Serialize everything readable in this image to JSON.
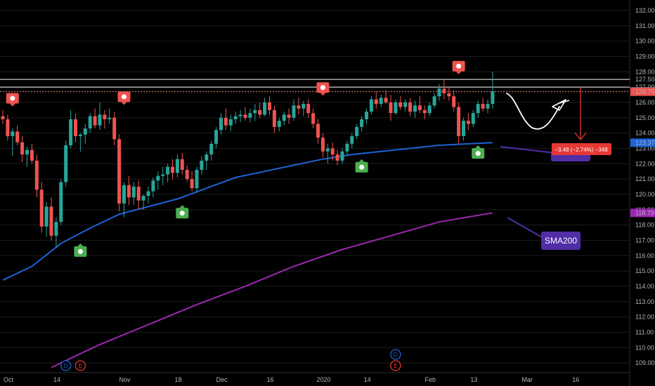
{
  "chart_data": {
    "type": "candlestick",
    "y_axis": {
      "min": 108.5,
      "max": 132.5,
      "ticks": [
        "132.00",
        "131.00",
        "130.00",
        "129.00",
        "128.00",
        "127.00",
        "126.00",
        "125.00",
        "124.00",
        "123.00",
        "122.00",
        "121.00",
        "120.00",
        "119.00",
        "118.00",
        "117.00",
        "116.00",
        "115.00",
        "114.00",
        "113.00",
        "112.00",
        "111.00",
        "110.00",
        "109.00"
      ],
      "position": "right"
    },
    "x_axis": {
      "ticks": [
        {
          "label": "Oct",
          "bar": 0
        },
        {
          "label": "14",
          "bar": 10
        },
        {
          "label": "Nov",
          "bar": 24
        },
        {
          "label": "18",
          "bar": 35
        },
        {
          "label": "Dec",
          "bar": 44
        },
        {
          "label": "16",
          "bar": 54
        },
        {
          "label": "2020",
          "bar": 65
        },
        {
          "label": "14",
          "bar": 74
        },
        {
          "label": "Feb",
          "bar": 87
        },
        {
          "label": "13",
          "bar": 96
        },
        {
          "label": "Mar",
          "bar": 107
        },
        {
          "label": "16",
          "bar": 117
        }
      ]
    },
    "candles": [
      [
        125.1,
        125.5,
        124.6,
        124.9
      ],
      [
        124.9,
        125.2,
        123.5,
        123.8
      ],
      [
        123.8,
        124.3,
        122.5,
        124.1
      ],
      [
        124.1,
        124.5,
        123.2,
        123.4
      ],
      [
        123.4,
        123.8,
        122.1,
        122.6
      ],
      [
        122.6,
        123.1,
        121.8,
        122.9
      ],
      [
        122.9,
        123.3,
        122.0,
        122.2
      ],
      [
        122.2,
        122.6,
        119.8,
        120.3
      ],
      [
        120.3,
        120.8,
        117.5,
        117.9
      ],
      [
        117.9,
        119.5,
        117.2,
        119.2
      ],
      [
        119.2,
        119.8,
        117.0,
        117.3
      ],
      [
        117.3,
        118.5,
        116.5,
        118.2
      ],
      [
        118.2,
        121.0,
        118.0,
        120.8
      ],
      [
        120.8,
        123.5,
        120.5,
        123.2
      ],
      [
        123.2,
        125.5,
        123.0,
        124.9
      ],
      [
        124.9,
        125.3,
        123.4,
        123.8
      ],
      [
        123.8,
        124.0,
        122.8,
        123.9
      ],
      [
        123.9,
        124.6,
        123.3,
        124.3
      ],
      [
        124.3,
        125.3,
        124.0,
        125.1
      ],
      [
        125.1,
        125.6,
        124.3,
        124.5
      ],
      [
        124.5,
        126.0,
        124.2,
        125.2
      ],
      [
        125.2,
        125.5,
        124.3,
        124.9
      ],
      [
        124.9,
        125.6,
        124.6,
        125.0
      ],
      [
        125.0,
        125.4,
        123.2,
        123.6
      ],
      [
        123.6,
        123.9,
        118.9,
        119.4
      ],
      [
        119.4,
        120.8,
        118.5,
        120.6
      ],
      [
        120.6,
        121.2,
        119.3,
        119.8
      ],
      [
        119.8,
        120.8,
        119.3,
        120.5
      ],
      [
        120.5,
        120.9,
        119.0,
        119.6
      ],
      [
        119.6,
        120.0,
        119.0,
        119.9
      ],
      [
        119.9,
        120.5,
        119.4,
        120.2
      ],
      [
        120.2,
        121.1,
        119.8,
        120.9
      ],
      [
        120.9,
        121.5,
        120.3,
        121.2
      ],
      [
        121.2,
        121.8,
        120.6,
        121.3
      ],
      [
        121.3,
        122.0,
        120.8,
        121.8
      ],
      [
        121.8,
        122.3,
        121.0,
        121.4
      ],
      [
        121.4,
        122.6,
        121.1,
        122.3
      ],
      [
        122.3,
        122.7,
        121.3,
        121.6
      ],
      [
        121.6,
        121.9,
        120.8,
        121.0
      ],
      [
        121.0,
        121.5,
        120.2,
        120.4
      ],
      [
        120.4,
        121.8,
        120.1,
        121.6
      ],
      [
        121.6,
        122.5,
        121.3,
        122.2
      ],
      [
        122.2,
        122.8,
        121.6,
        122.6
      ],
      [
        122.6,
        123.5,
        122.2,
        123.3
      ],
      [
        123.3,
        124.4,
        123.0,
        124.2
      ],
      [
        124.2,
        125.3,
        123.9,
        125.0
      ],
      [
        125.0,
        125.6,
        124.2,
        124.5
      ],
      [
        124.5,
        125.2,
        124.1,
        124.9
      ],
      [
        124.9,
        125.4,
        124.6,
        125.1
      ],
      [
        125.1,
        125.5,
        124.7,
        125.2
      ],
      [
        125.2,
        125.7,
        124.8,
        125.0
      ],
      [
        125.0,
        125.6,
        124.7,
        125.3
      ],
      [
        125.3,
        125.9,
        124.8,
        125.5
      ],
      [
        125.5,
        126.0,
        125.0,
        125.2
      ],
      [
        125.2,
        126.3,
        125.1,
        126.0
      ],
      [
        126.0,
        126.4,
        125.2,
        125.5
      ],
      [
        125.5,
        125.8,
        124.0,
        124.4
      ],
      [
        124.4,
        125.0,
        124.1,
        124.8
      ],
      [
        124.8,
        125.4,
        124.5,
        125.2
      ],
      [
        125.2,
        125.6,
        124.6,
        125.0
      ],
      [
        125.0,
        126.2,
        124.8,
        125.8
      ],
      [
        125.8,
        126.3,
        125.2,
        125.6
      ],
      [
        125.6,
        126.1,
        125.1,
        125.9
      ],
      [
        125.9,
        126.2,
        125.0,
        125.3
      ],
      [
        125.3,
        125.6,
        124.3,
        124.6
      ],
      [
        124.6,
        124.9,
        123.3,
        123.7
      ],
      [
        123.7,
        124.0,
        122.4,
        122.8
      ],
      [
        122.8,
        123.3,
        122.0,
        123.0
      ],
      [
        123.0,
        123.4,
        122.2,
        122.6
      ],
      [
        122.6,
        122.9,
        121.9,
        122.2
      ],
      [
        122.2,
        123.0,
        122.0,
        122.8
      ],
      [
        122.8,
        123.5,
        122.5,
        123.3
      ],
      [
        123.3,
        124.0,
        123.0,
        123.8
      ],
      [
        123.8,
        124.6,
        123.6,
        124.4
      ],
      [
        124.4,
        125.1,
        124.1,
        124.9
      ],
      [
        124.9,
        125.6,
        124.6,
        125.4
      ],
      [
        125.4,
        126.4,
        125.2,
        126.2
      ],
      [
        126.2,
        126.7,
        125.6,
        125.9
      ],
      [
        125.9,
        126.5,
        125.7,
        126.3
      ],
      [
        126.3,
        126.8,
        125.9,
        126.0
      ],
      [
        126.0,
        126.5,
        124.8,
        125.3
      ],
      [
        125.3,
        126.2,
        125.2,
        126.0
      ],
      [
        126.0,
        126.4,
        125.5,
        125.7
      ],
      [
        125.7,
        126.2,
        125.4,
        126.0
      ],
      [
        126.0,
        126.3,
        125.1,
        125.4
      ],
      [
        125.4,
        126.1,
        125.0,
        125.8
      ],
      [
        125.8,
        126.4,
        125.3,
        125.5
      ],
      [
        125.5,
        125.8,
        124.9,
        125.3
      ],
      [
        125.3,
        126.0,
        125.1,
        125.8
      ],
      [
        125.8,
        126.6,
        125.6,
        126.4
      ],
      [
        126.4,
        127.2,
        126.1,
        126.9
      ],
      [
        126.9,
        127.5,
        126.2,
        126.6
      ],
      [
        126.6,
        127.0,
        126.1,
        126.4
      ],
      [
        126.4,
        126.8,
        125.4,
        125.7
      ],
      [
        125.7,
        126.0,
        123.3,
        123.8
      ],
      [
        123.8,
        125.0,
        123.5,
        124.8
      ],
      [
        124.8,
        125.3,
        124.2,
        124.6
      ],
      [
        124.6,
        125.5,
        124.4,
        125.3
      ],
      [
        125.3,
        126.1,
        125.0,
        125.9
      ],
      [
        125.9,
        126.3,
        125.4,
        125.6
      ],
      [
        125.6,
        126.2,
        125.3,
        125.9
      ],
      [
        125.9,
        128.0,
        125.6,
        126.72
      ]
    ],
    "price_lines": [
      {
        "value": 127.5,
        "label": "127.50",
        "color": "#ffffff",
        "style": "solid"
      },
      {
        "value": 127.0,
        "label": "127.00",
        "color": "#ffffff",
        "style": "solid"
      },
      {
        "value": 126.72,
        "label": "126.72",
        "color": "#26a69a",
        "style": "dotted"
      },
      {
        "value": 126.7,
        "label": "126.70",
        "color": "#ef5350",
        "style": "dotted"
      }
    ],
    "price_labels": [
      {
        "value": 126.72,
        "label": "126.72",
        "color": "#26a69a"
      },
      {
        "value": 126.7,
        "label": "126.70",
        "color": "#ef5350"
      },
      {
        "value": 123.37,
        "label": "123.37",
        "color": "#1e63d4"
      },
      {
        "value": 118.79,
        "label": "118.79",
        "color": "#9c27b0"
      }
    ],
    "ma_blue": [
      [
        0,
        114.4
      ],
      [
        6,
        115.3
      ],
      [
        12,
        116.8
      ],
      [
        18,
        117.8
      ],
      [
        24,
        118.7
      ],
      [
        30,
        119.2
      ],
      [
        36,
        119.7
      ],
      [
        42,
        120.4
      ],
      [
        48,
        121.1
      ],
      [
        54,
        121.5
      ],
      [
        60,
        121.9
      ],
      [
        66,
        122.3
      ],
      [
        72,
        122.6
      ],
      [
        78,
        122.8
      ],
      [
        84,
        123.0
      ],
      [
        90,
        123.2
      ],
      [
        96,
        123.3
      ],
      [
        101,
        123.37
      ]
    ],
    "ma_purple": [
      [
        10,
        108.7
      ],
      [
        20,
        110.2
      ],
      [
        30,
        111.5
      ],
      [
        40,
        112.8
      ],
      [
        50,
        114.0
      ],
      [
        60,
        115.3
      ],
      [
        70,
        116.4
      ],
      [
        80,
        117.3
      ],
      [
        90,
        118.2
      ],
      [
        101,
        118.79
      ]
    ],
    "callout_sma": {
      "text": "SMA200",
      "color": "#512da8"
    },
    "callout_change": {
      "text": "−3.48 (−2.74%) −348",
      "color": "#e53935"
    },
    "pattern_markers": [
      {
        "bar": 2,
        "value": 126.2,
        "kind": "bear",
        "icon": "bear-icon"
      },
      {
        "bar": 25,
        "value": 126.3,
        "kind": "bear",
        "icon": "bear-icon"
      },
      {
        "bar": 66,
        "value": 126.9,
        "kind": "bear",
        "icon": "bear-icon"
      },
      {
        "bar": 94,
        "value": 128.3,
        "kind": "bear",
        "icon": "bear-icon"
      },
      {
        "bar": 16,
        "value": 116.2,
        "kind": "bull",
        "icon": "bull-icon"
      },
      {
        "bar": 37,
        "value": 118.7,
        "kind": "bull",
        "icon": "bull-icon"
      },
      {
        "bar": 74,
        "value": 121.7,
        "kind": "bull",
        "icon": "bull-icon"
      },
      {
        "bar": 98,
        "value": 122.6,
        "kind": "bull",
        "icon": "bull-icon"
      }
    ],
    "events": [
      {
        "bar": 13,
        "label": "D",
        "color": "#1e63d4"
      },
      {
        "bar": 16,
        "label": "E",
        "color": "#e53935"
      },
      {
        "bar": 81,
        "label": "D",
        "color": "#1e63d4"
      },
      {
        "bar": 81,
        "label": "E",
        "color": "#e53935",
        "row": 2
      }
    ],
    "colors": {
      "up": "#26a69a",
      "down": "#ef5350",
      "axis_text": "#b2b5be",
      "grid": "#1c1c1c"
    }
  }
}
